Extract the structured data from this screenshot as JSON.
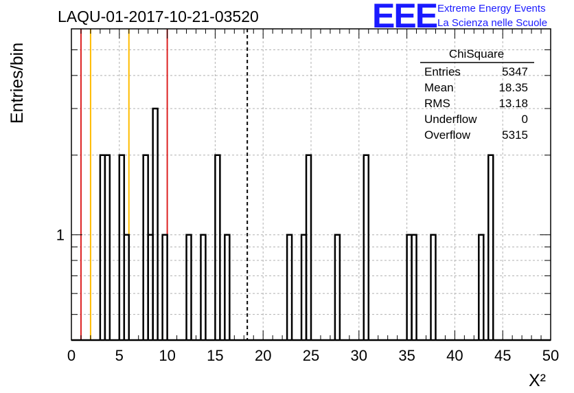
{
  "header": {
    "title": "LAQU-01-2017-10-21-03520",
    "logo": "EEE",
    "logo_line1": "Extreme Energy Events",
    "logo_line2": "La Scienza nelle Scuole"
  },
  "stats": {
    "title": "ChiSquare",
    "rows": [
      {
        "label": "Entries",
        "value": "5347"
      },
      {
        "label": "Mean",
        "value": "18.35"
      },
      {
        "label": "RMS",
        "value": "13.18"
      },
      {
        "label": "Underflow",
        "value": "0"
      },
      {
        "label": "Overflow",
        "value": "5315"
      }
    ]
  },
  "colors": {
    "red_line": "#dd2222",
    "orange_line": "#ffbb00",
    "hist": "#000000",
    "logo": "#1a1aff"
  },
  "chart_data": {
    "type": "histogram",
    "title": "LAQU-01-2017-10-21-03520",
    "xlabel": "X²",
    "ylabel": "Entries/bin",
    "xlim": [
      0,
      50
    ],
    "ylim": [
      0.4,
      6
    ],
    "yscale": "log",
    "grid": true,
    "bin_width": 0.5,
    "x_ticks": [
      0,
      5,
      10,
      15,
      20,
      25,
      30,
      35,
      40,
      45,
      50
    ],
    "y_tick_labels": [
      {
        "value": 1,
        "label": "1"
      }
    ],
    "bins": [
      {
        "x": 3.0,
        "count": 2
      },
      {
        "x": 3.5,
        "count": 2
      },
      {
        "x": 5.0,
        "count": 2
      },
      {
        "x": 5.5,
        "count": 1
      },
      {
        "x": 7.5,
        "count": 2
      },
      {
        "x": 8.0,
        "count": 1
      },
      {
        "x": 8.5,
        "count": 3
      },
      {
        "x": 9.5,
        "count": 1
      },
      {
        "x": 12.0,
        "count": 1
      },
      {
        "x": 13.5,
        "count": 1
      },
      {
        "x": 15.0,
        "count": 2
      },
      {
        "x": 16.0,
        "count": 1
      },
      {
        "x": 22.5,
        "count": 1
      },
      {
        "x": 24.0,
        "count": 1
      },
      {
        "x": 24.5,
        "count": 2
      },
      {
        "x": 27.5,
        "count": 1
      },
      {
        "x": 30.5,
        "count": 2
      },
      {
        "x": 35.0,
        "count": 1
      },
      {
        "x": 35.5,
        "count": 1
      },
      {
        "x": 37.5,
        "count": 1
      },
      {
        "x": 42.5,
        "count": 1
      },
      {
        "x": 43.5,
        "count": 2
      }
    ],
    "vertical_lines": [
      {
        "x": 1.0,
        "style": "red"
      },
      {
        "x": 2.0,
        "style": "orange"
      },
      {
        "x": 6.0,
        "style": "orange"
      },
      {
        "x": 10.0,
        "style": "red"
      },
      {
        "x": 18.35,
        "style": "dashed"
      }
    ]
  }
}
